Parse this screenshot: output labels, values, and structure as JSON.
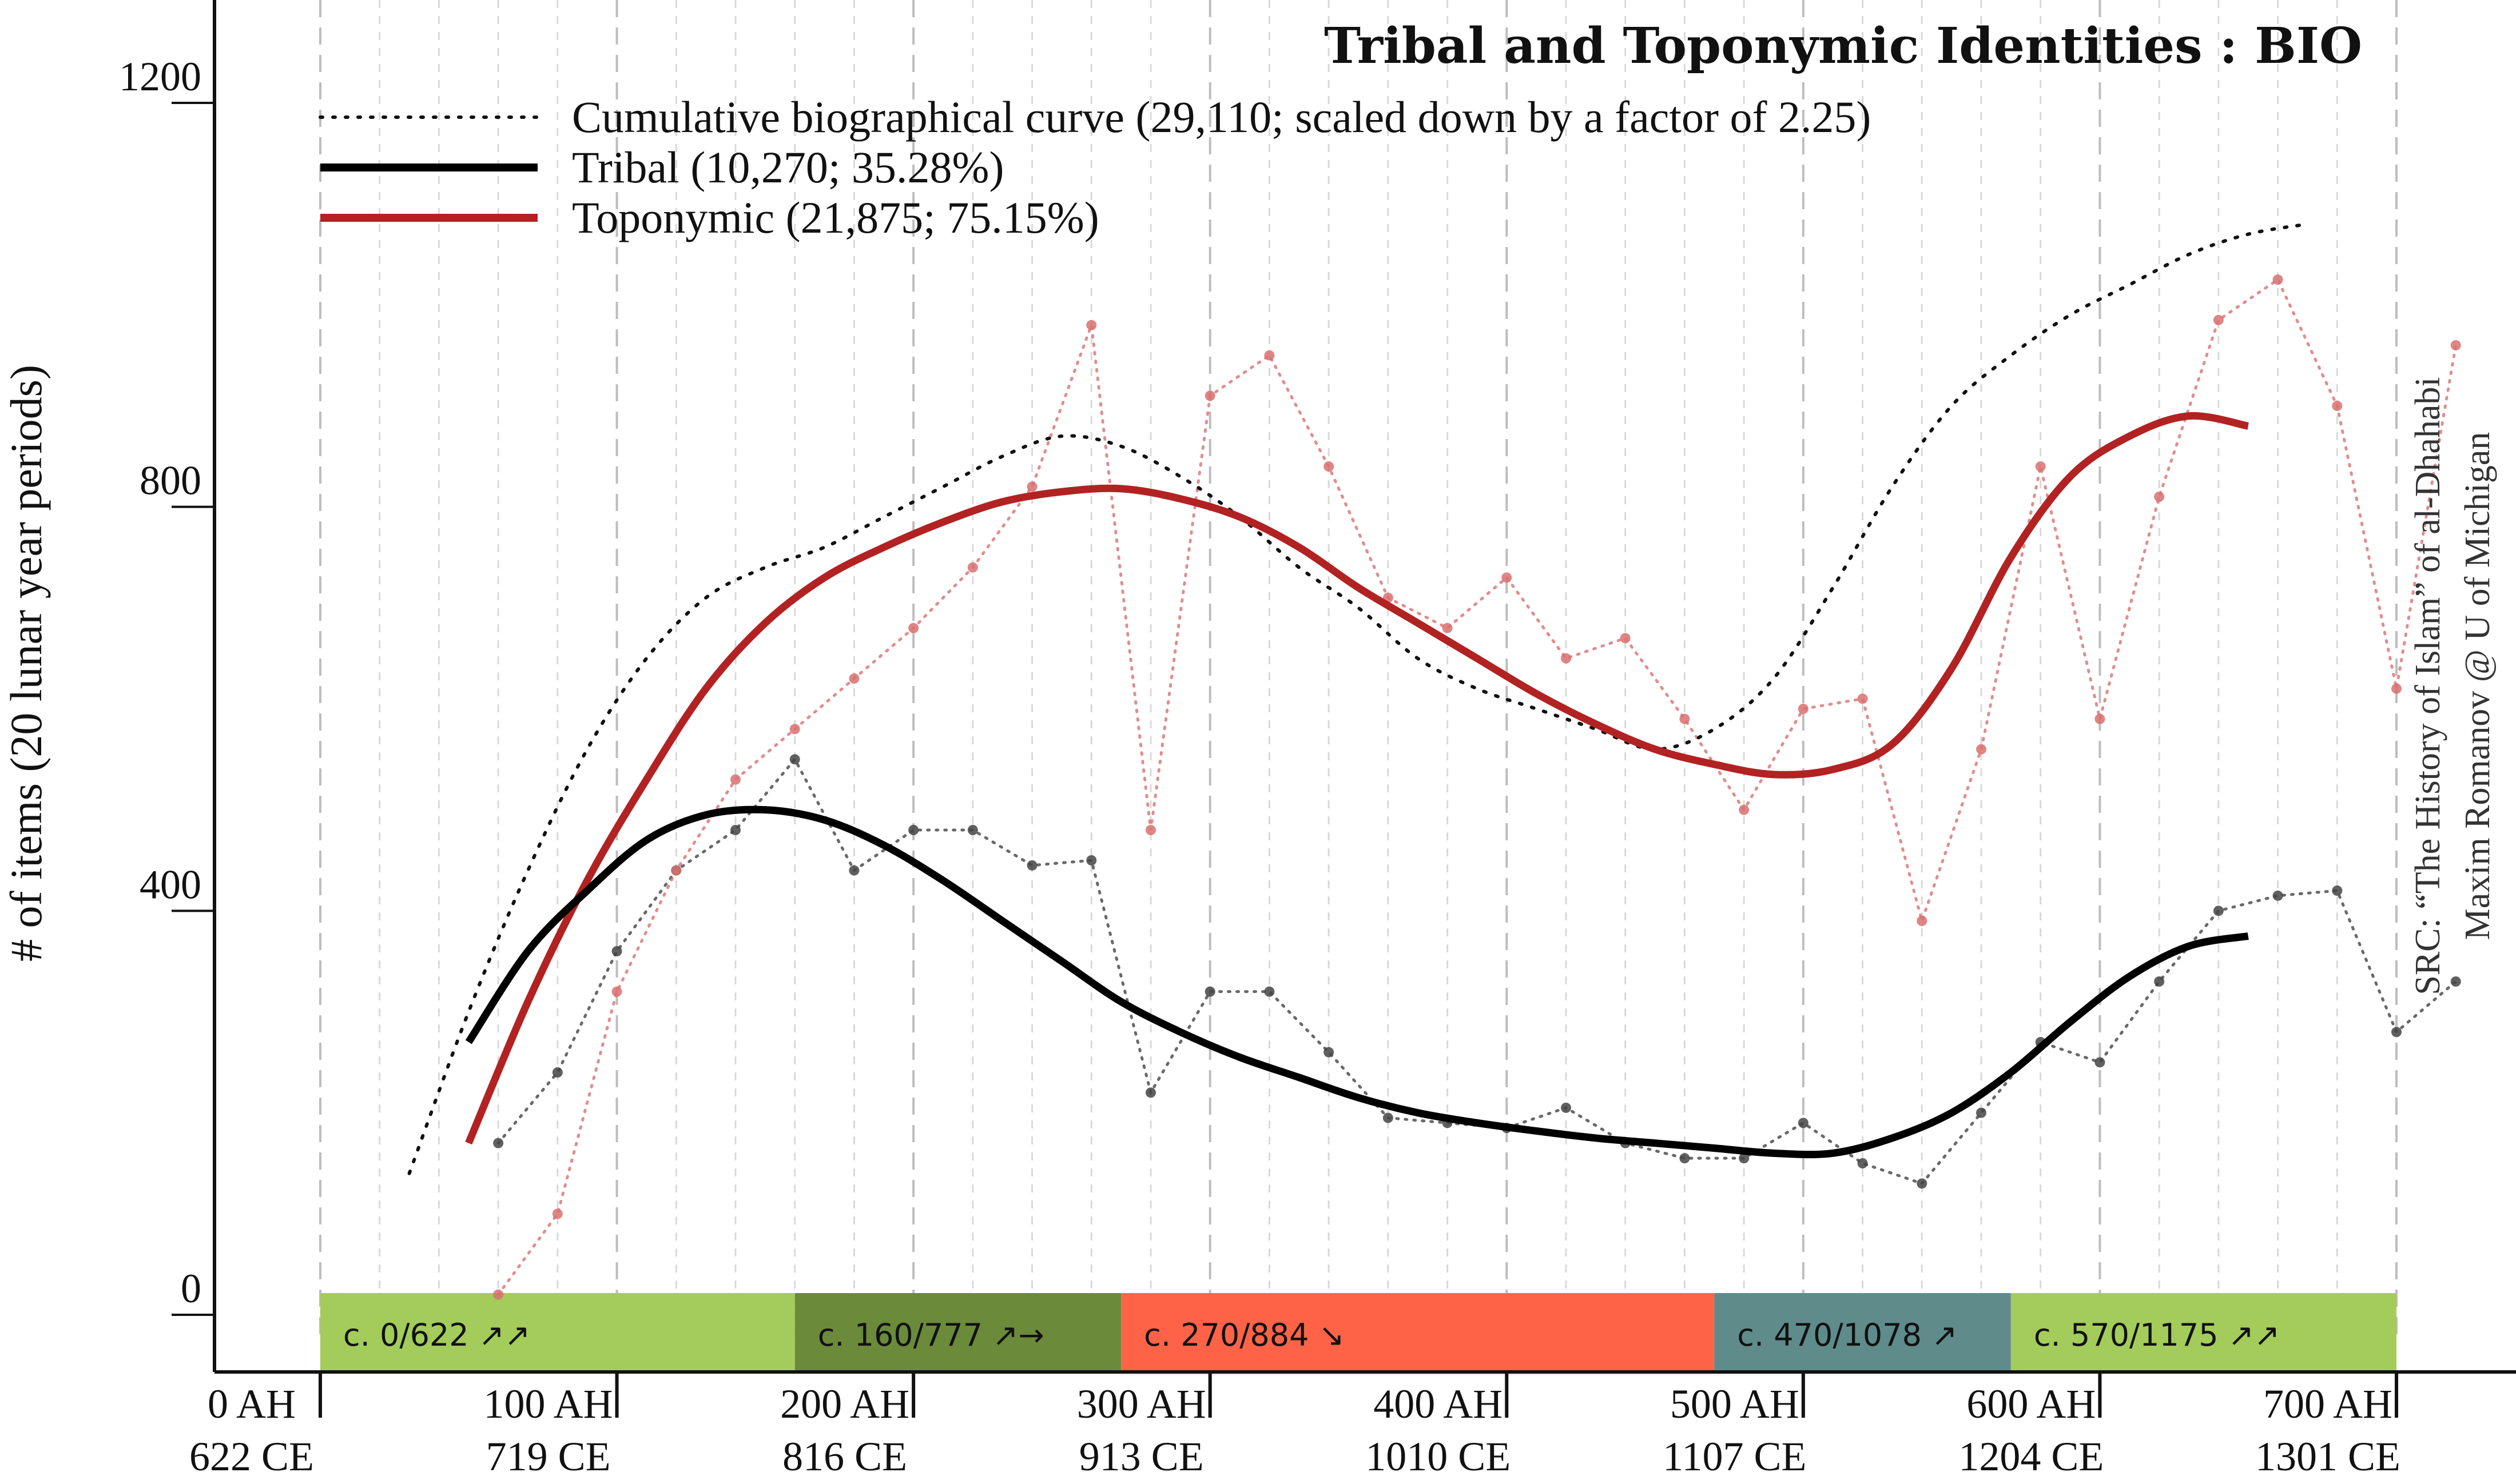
{
  "chart_data": {
    "type": "line",
    "title": "Tribal and Toponymic Identities : BIO",
    "ylabel": "# of items (20 lunar year periods)",
    "xlabel": "",
    "ylim": [
      -40,
      1300
    ],
    "xlim": [
      0,
      720
    ],
    "yticks": [
      "0",
      "400",
      "800",
      "1200"
    ],
    "ytick_values": [
      0,
      400,
      800,
      1200
    ],
    "xticks": [
      {
        "value": 0,
        "ah": "0 AH",
        "ce": "622 CE"
      },
      {
        "value": 100,
        "ah": "100 AH",
        "ce": "719 CE"
      },
      {
        "value": 200,
        "ah": "200 AH",
        "ce": "816 CE"
      },
      {
        "value": 300,
        "ah": "300 AH",
        "ce": "913 CE"
      },
      {
        "value": 400,
        "ah": "400 AH",
        "ce": "1010 CE"
      },
      {
        "value": 500,
        "ah": "500 AH",
        "ce": "1107 CE"
      },
      {
        "value": 600,
        "ah": "600 AH",
        "ce": "1204 CE"
      },
      {
        "value": 700,
        "ah": "700 AH",
        "ce": "1301 CE"
      }
    ],
    "grid": true,
    "legend_position": "top",
    "periods": [
      {
        "label": "c. 0/622 ↗↗",
        "start": 0,
        "end": 160,
        "color": "#a3cc5a"
      },
      {
        "label": "c. 160/777 ↗→",
        "start": 160,
        "end": 270,
        "color": "#6b8a3a"
      },
      {
        "label": "c. 270/884 ↘",
        "start": 270,
        "end": 470,
        "color": "#ff6347"
      },
      {
        "label": "c. 470/1078 ↗",
        "start": 470,
        "end": 570,
        "color": "#5f8b8b"
      },
      {
        "label": "c. 570/1175 ↗↗",
        "start": 570,
        "end": 700,
        "color": "#a3cc5a"
      }
    ],
    "series": [
      {
        "name": "Cumulative biographical curve (29,110; scaled down by a factor of 2.25)",
        "style": "dotted",
        "color": "#111111",
        "x": [
          30,
          50,
          70,
          90,
          110,
          130,
          150,
          170,
          190,
          210,
          230,
          250,
          270,
          290,
          310,
          330,
          350,
          370,
          390,
          410,
          430,
          450,
          470,
          490,
          510,
          530,
          550,
          570,
          590,
          610,
          630,
          650,
          670
        ],
        "y": [
          140,
          300,
          440,
          560,
          650,
          710,
          740,
          760,
          790,
          820,
          850,
          870,
          860,
          830,
          790,
          740,
          700,
          650,
          620,
          600,
          580,
          560,
          580,
          630,
          720,
          820,
          900,
          950,
          990,
          1020,
          1050,
          1070,
          1080
        ]
      },
      {
        "name": "Tribal (10,270; 35.28%)",
        "style": "solid",
        "color": "#000000",
        "x": [
          50,
          70,
          90,
          110,
          130,
          150,
          170,
          190,
          210,
          230,
          250,
          270,
          290,
          310,
          330,
          350,
          370,
          390,
          410,
          430,
          450,
          470,
          490,
          510,
          530,
          550,
          570,
          590,
          610,
          630,
          650
        ],
        "y": [
          270,
          360,
          420,
          470,
          495,
          500,
          490,
          465,
          430,
          390,
          350,
          310,
          280,
          255,
          235,
          215,
          200,
          190,
          182,
          175,
          170,
          165,
          160,
          160,
          175,
          200,
          240,
          290,
          335,
          365,
          375
        ]
      },
      {
        "name": "Toponymic (21,875; 75.15%)",
        "style": "solid",
        "color": "#b22222",
        "x": [
          50,
          70,
          90,
          110,
          130,
          150,
          170,
          190,
          210,
          230,
          250,
          270,
          290,
          310,
          330,
          350,
          370,
          390,
          410,
          430,
          450,
          470,
          490,
          510,
          530,
          550,
          570,
          590,
          610,
          630,
          650
        ],
        "y": [
          170,
          310,
          430,
          530,
          620,
          685,
          730,
          760,
          785,
          805,
          815,
          818,
          808,
          790,
          760,
          720,
          685,
          650,
          615,
          585,
          560,
          545,
          535,
          540,
          565,
          640,
          750,
          830,
          870,
          890,
          880
        ]
      },
      {
        "name": "",
        "style": "dotted-points",
        "color": "#444444",
        "x": [
          60,
          80,
          100,
          120,
          140,
          160,
          180,
          200,
          220,
          240,
          260,
          280,
          300,
          320,
          340,
          360,
          380,
          400,
          420,
          440,
          460,
          480,
          500,
          520,
          540,
          560,
          580,
          600,
          620,
          640,
          660,
          680,
          700,
          720
        ],
        "y": [
          170,
          240,
          360,
          440,
          480,
          550,
          440,
          480,
          480,
          445,
          450,
          220,
          320,
          320,
          260,
          195,
          190,
          185,
          205,
          170,
          155,
          155,
          190,
          150,
          130,
          200,
          270,
          250,
          330,
          400,
          415,
          420,
          280,
          330
        ]
      },
      {
        "name": "",
        "style": "dotted-points",
        "color": "#d97070",
        "x": [
          60,
          80,
          100,
          120,
          140,
          160,
          180,
          200,
          220,
          240,
          260,
          280,
          300,
          320,
          340,
          360,
          380,
          400,
          420,
          440,
          460,
          480,
          500,
          520,
          540,
          560,
          580,
          600,
          620,
          640,
          660,
          680,
          700,
          720
        ],
        "y": [
          20,
          100,
          320,
          440,
          530,
          580,
          630,
          680,
          740,
          820,
          980,
          480,
          910,
          950,
          840,
          710,
          680,
          730,
          650,
          670,
          590,
          500,
          600,
          610,
          390,
          560,
          840,
          590,
          810,
          985,
          1025,
          900,
          620,
          960
        ]
      }
    ]
  },
  "src_note": {
    "line1": "SRC: “The History of Islam” of al-Dhahabi",
    "line2": "Maxim Romanov @ U of Michigan"
  },
  "colors": {
    "tribal": "#000000",
    "toponymic": "#b22222",
    "cumulative": "#111111"
  }
}
